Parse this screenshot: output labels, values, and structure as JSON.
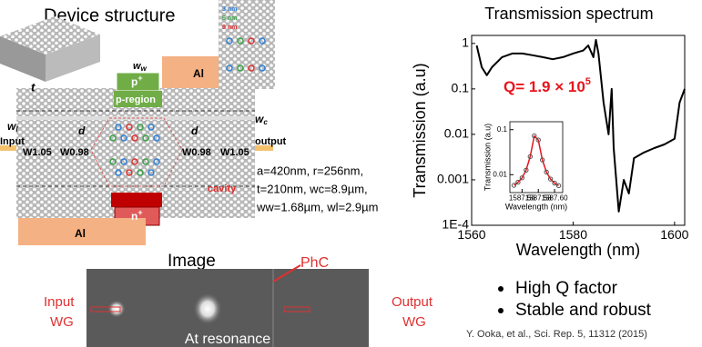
{
  "device": {
    "title": "Device structure",
    "ww": {
      "text": "w",
      "sub": "w"
    },
    "pplus": {
      "text": "p",
      "sup": "+"
    },
    "al_top": "Al",
    "t": "t",
    "pregion": "p-region",
    "wl": {
      "text": "w",
      "sub": "l"
    },
    "d_left": "d",
    "d_right": "d",
    "wc": {
      "text": "w",
      "sub": "c"
    },
    "input": "Input",
    "w105_left": "W1.05",
    "w098_left": "W0.98",
    "w098_right": "W0.98",
    "w105_right": "W1.05",
    "output": "output",
    "cavity": "cavity",
    "nplus": {
      "text": "n",
      "sup": "+"
    },
    "al_bottom": "Al",
    "shifts": [
      "3 nm",
      "6 nm",
      "9 nm"
    ],
    "params": [
      "a=420nm, r=256nm,",
      "t=210nm, wc=8.9µm,",
      "ww=1.68µm, wl=2.9µm"
    ]
  },
  "chart_data": [
    {
      "type": "line",
      "title": "Transmission spectrum",
      "x_label": "Wavelength (nm)",
      "y_label": "Transmission (a.u)",
      "log_y": true,
      "annotation": {
        "text": "Q= 1.9 × 10",
        "sup": "5",
        "color": "#e8141c"
      },
      "x": [
        1561,
        1562,
        1563,
        1564,
        1566,
        1568,
        1570,
        1572,
        1574,
        1576,
        1578,
        1580,
        1582,
        1583,
        1584,
        1584.5,
        1585,
        1586,
        1587,
        1587.6,
        1588,
        1589,
        1590,
        1591,
        1592,
        1594,
        1596,
        1598,
        1600,
        1601,
        1602
      ],
      "series": [
        {
          "color": "#000000",
          "values": [
            0.9,
            0.3,
            0.2,
            0.3,
            0.5,
            0.6,
            0.6,
            0.55,
            0.5,
            0.45,
            0.5,
            0.6,
            0.7,
            0.9,
            0.5,
            1.2,
            0.6,
            0.05,
            0.01,
            0.1,
            0.005,
            0.0002,
            0.001,
            0.0005,
            0.003,
            0.004,
            0.005,
            0.006,
            0.008,
            0.05,
            0.1
          ]
        }
      ],
      "xlim": [
        1560,
        1602
      ],
      "ylim": [
        0.0001,
        1.5
      ],
      "xticks": [
        1560,
        1580,
        1600
      ],
      "yticks": [
        {
          "value": 0.0001,
          "label": "1E-4"
        },
        0.001,
        0.01,
        0.1,
        1
      ]
    },
    {
      "type": "line",
      "x_label": "Wavelength (nm)",
      "y_label": "Transmission (a.u)",
      "log_y": true,
      "x": [
        1587.55,
        1587.555,
        1587.56,
        1587.565,
        1587.57,
        1587.575,
        1587.58,
        1587.585,
        1587.59,
        1587.595,
        1587.6,
        1587.605
      ],
      "series": [
        {
          "color": "#e8141c",
          "values": [
            0.0058,
            0.0068,
            0.0085,
            0.0126,
            0.0252,
            0.0728,
            0.059,
            0.0212,
            0.0114,
            0.008,
            0.0065,
            0.0057
          ]
        },
        {
          "color": "#555555",
          "marker": "circle",
          "values": [
            0.0058,
            0.0068,
            0.0085,
            0.0126,
            0.0252,
            0.0728,
            0.059,
            0.0212,
            0.0114,
            0.008,
            0.0065,
            0.0057
          ]
        }
      ],
      "xlim": [
        1587.545,
        1587.61
      ],
      "ylim": [
        0.004,
        0.15
      ],
      "xticks": [
        1587.56,
        1587.58,
        {
          "value": 1587.6,
          "label": "1587.60"
        }
      ],
      "yticks": [
        0.01,
        0.1
      ]
    }
  ],
  "image": {
    "title": "Image",
    "phc": "PhC",
    "input": [
      "Input",
      "WG"
    ],
    "output": [
      "Output",
      "WG"
    ],
    "caption": "At resonance"
  },
  "bullets": [
    "High Q factor",
    "Stable and robust"
  ],
  "citation": "Y. Ooka, et al., Sci. Rep. 5, 11312 (2015)"
}
